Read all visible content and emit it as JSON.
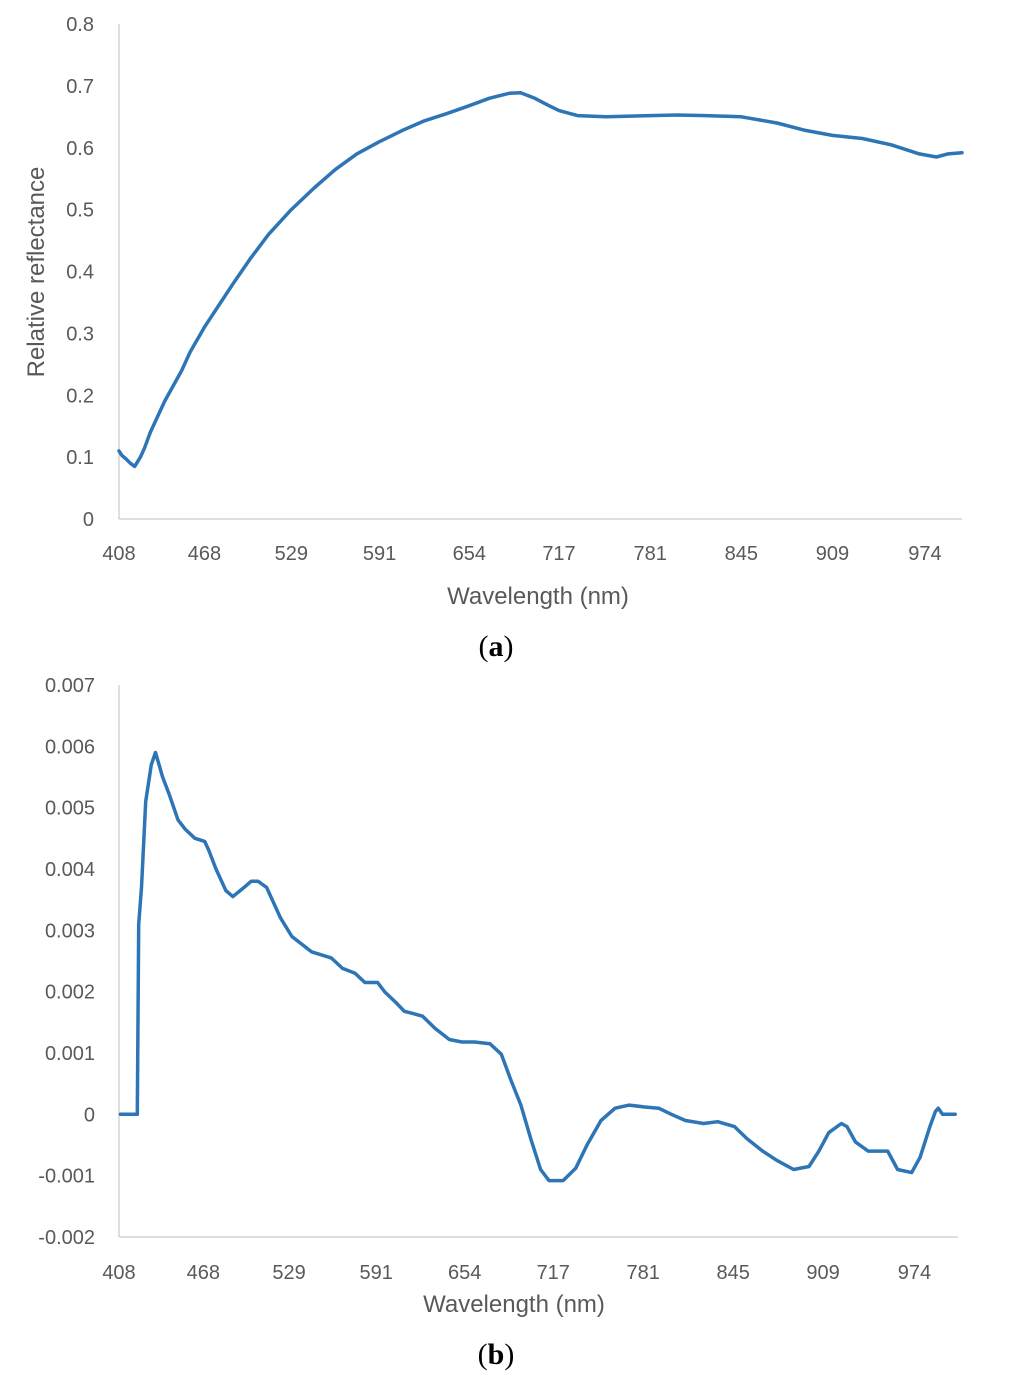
{
  "colors": {
    "series": "#2e75b6",
    "axis": "#bfbfbf",
    "text": "#595959"
  },
  "chart_data": [
    {
      "type": "line",
      "panel": "a",
      "panel_label": {
        "open": "(",
        "letter": "a",
        "close": ")"
      },
      "xlabel": "Wavelength (nm)",
      "ylabel": "Relative reflectance",
      "xlim": [
        408,
        1000
      ],
      "ylim": [
        0,
        0.8
      ],
      "xticks": [
        408,
        468,
        529,
        591,
        654,
        717,
        781,
        845,
        909,
        974
      ],
      "yticks": [
        "0",
        "0.1",
        "0.2",
        "0.3",
        "0.4",
        "0.5",
        "0.6",
        "0.7",
        "0.8"
      ],
      "grid": false,
      "series": [
        {
          "x": [
            408,
            410,
            413,
            416,
            419,
            423,
            426,
            430,
            434,
            440,
            446,
            452,
            458,
            468,
            478,
            488,
            500,
            513,
            529,
            545,
            560,
            575,
            591,
            607,
            622,
            638,
            654,
            668,
            682,
            690,
            700,
            710,
            717,
            730,
            750,
            781,
            800,
            820,
            845,
            870,
            890,
            909,
            930,
            950,
            970,
            982,
            990,
            1000
          ],
          "y": [
            0.11,
            0.103,
            0.097,
            0.09,
            0.085,
            0.1,
            0.115,
            0.14,
            0.16,
            0.19,
            0.215,
            0.24,
            0.27,
            0.31,
            0.345,
            0.38,
            0.42,
            0.46,
            0.5,
            0.535,
            0.565,
            0.59,
            0.61,
            0.628,
            0.643,
            0.655,
            0.668,
            0.68,
            0.688,
            0.689,
            0.68,
            0.668,
            0.66,
            0.652,
            0.65,
            0.652,
            0.653,
            0.652,
            0.65,
            0.64,
            0.628,
            0.62,
            0.615,
            0.605,
            0.59,
            0.585,
            0.59,
            0.592
          ]
        }
      ]
    },
    {
      "type": "line",
      "panel": "b",
      "panel_label": {
        "open": "(",
        "letter": "b",
        "close": ")"
      },
      "xlabel": "Wavelength (nm)",
      "ylabel": "",
      "xlim": [
        408,
        1005
      ],
      "ylim": [
        -0.002,
        0.007
      ],
      "xticks": [
        408,
        468,
        529,
        591,
        654,
        717,
        781,
        845,
        909,
        974
      ],
      "yticks": [
        "-0.002",
        "-0.001",
        "0",
        "0.001",
        "0.002",
        "0.003",
        "0.004",
        "0.005",
        "0.006",
        "0.007"
      ],
      "grid": false,
      "series": [
        {
          "x": [
            409,
            421,
            422,
            424,
            427,
            431,
            434,
            439,
            444,
            450,
            455,
            462,
            469,
            472,
            477,
            484,
            489,
            497,
            502,
            507,
            513,
            517,
            523,
            531,
            545,
            559,
            567,
            576,
            583,
            592,
            597,
            606,
            611,
            616,
            624,
            633,
            643,
            652,
            661,
            672,
            680,
            687,
            694,
            701,
            708,
            714,
            724,
            733,
            741,
            751,
            761,
            771,
            782,
            792,
            801,
            811,
            824,
            834,
            846,
            855,
            866,
            876,
            888,
            899,
            906,
            913,
            922,
            926,
            932,
            941,
            948,
            955,
            962,
            972,
            978,
            985,
            989,
            991,
            994,
            1003
          ],
          "y": [
            0.0,
            0.0,
            0.0031,
            0.0037,
            0.0051,
            0.0057,
            0.0059,
            0.0055,
            0.0052,
            0.0048,
            0.00465,
            0.0045,
            0.00445,
            0.0043,
            0.004,
            0.00365,
            0.00355,
            0.0037,
            0.0038,
            0.0038,
            0.0037,
            0.0035,
            0.0032,
            0.0029,
            0.00265,
            0.00255,
            0.00238,
            0.0023,
            0.00215,
            0.00215,
            0.002,
            0.0018,
            0.00168,
            0.00165,
            0.0016,
            0.0014,
            0.00122,
            0.00118,
            0.00118,
            0.00115,
            0.00098,
            0.00055,
            0.00015,
            -0.0004,
            -0.0009,
            -0.00108,
            -0.00108,
            -0.00088,
            -0.0005,
            -0.0001,
            0.0001,
            0.00015,
            0.00012,
            0.0001,
            0.0,
            -0.0001,
            -0.00015,
            -0.00012,
            -0.0002,
            -0.0004,
            -0.0006,
            -0.00075,
            -0.0009,
            -0.00085,
            -0.0006,
            -0.0003,
            -0.00015,
            -0.0002,
            -0.00045,
            -0.0006,
            -0.0006,
            -0.0006,
            -0.0009,
            -0.00095,
            -0.0007,
            -0.0002,
            5e-05,
            0.0001,
            0.0,
            0.0
          ]
        }
      ]
    }
  ]
}
